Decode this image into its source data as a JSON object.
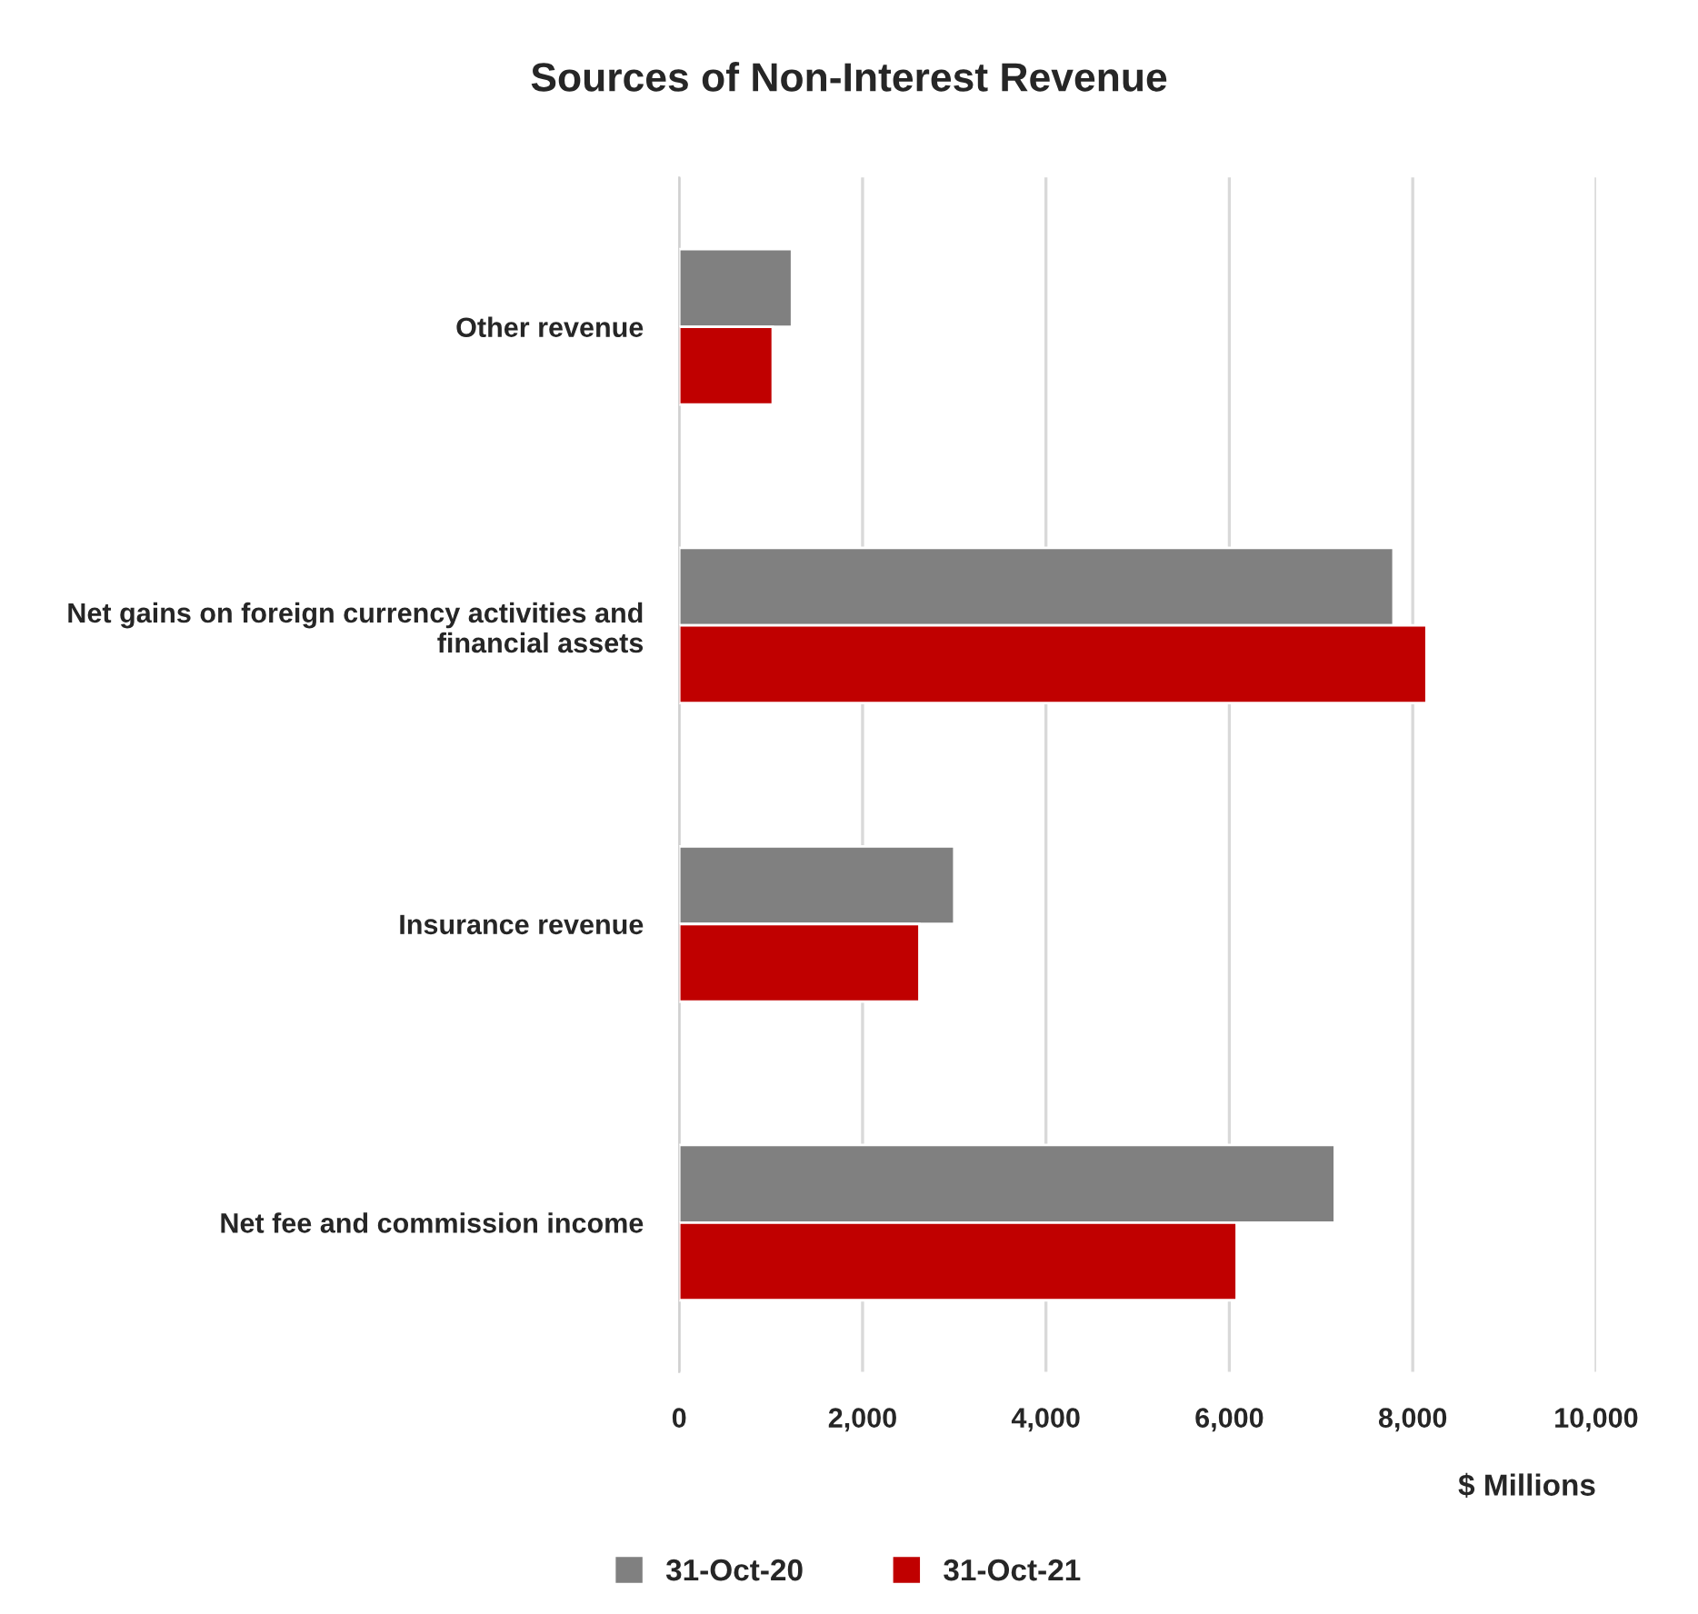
{
  "chart_data": {
    "type": "bar",
    "orientation": "horizontal",
    "title": "Sources of Non-Interest Revenue",
    "xlabel": "$ Millions",
    "categories": [
      "Other revenue",
      "Net gains on foreign currency activities and\nfinancial assets",
      "Insurance revenue",
      "Net fee and commission income"
    ],
    "series": [
      {
        "name": "31-Oct-20",
        "color": "#808080",
        "values": [
          1230,
          7790,
          3000,
          7150
        ]
      },
      {
        "name": "31-Oct-21",
        "color": "#c00000",
        "values": [
          1020,
          8150,
          2620,
          6080
        ]
      }
    ],
    "xlim": [
      0,
      10000
    ],
    "xticks": [
      {
        "value": 0,
        "label": "0"
      },
      {
        "value": 2000,
        "label": "2,000"
      },
      {
        "value": 4000,
        "label": "4,000"
      },
      {
        "value": 6000,
        "label": "6,000"
      },
      {
        "value": 8000,
        "label": "8,000"
      },
      {
        "value": 10000,
        "label": "10,000"
      }
    ],
    "grid": "x",
    "legend": "bottom"
  }
}
